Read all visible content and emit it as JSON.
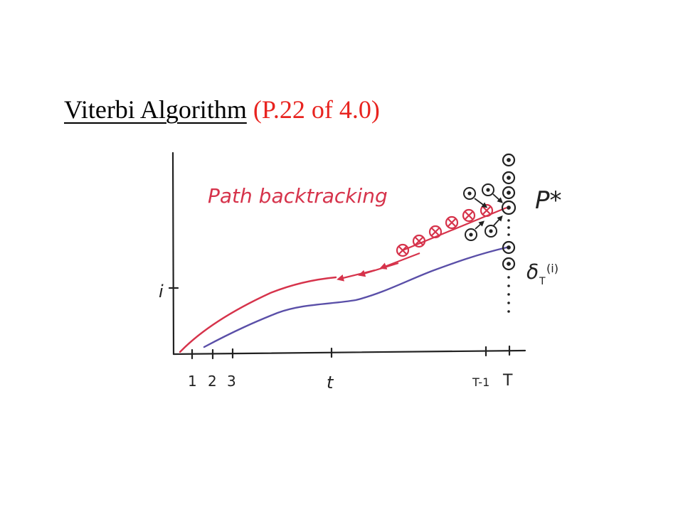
{
  "slide": {
    "title_main": "Viterbi Algorithm",
    "title_ref": "(P.22 of 4.0)"
  },
  "diagram": {
    "path_label": "Path backtracking",
    "optimal_label": "P*",
    "delta_label": "δ",
    "delta_sub": "T",
    "delta_arg": "(i)",
    "y_label": "i",
    "x_ticks": [
      "1",
      "2",
      "3",
      "t",
      "T-1",
      "T"
    ],
    "colors": {
      "red": "#d6334b",
      "blue": "#5a4fa8",
      "ink": "#222222",
      "title_ref": "#e8231f"
    }
  }
}
